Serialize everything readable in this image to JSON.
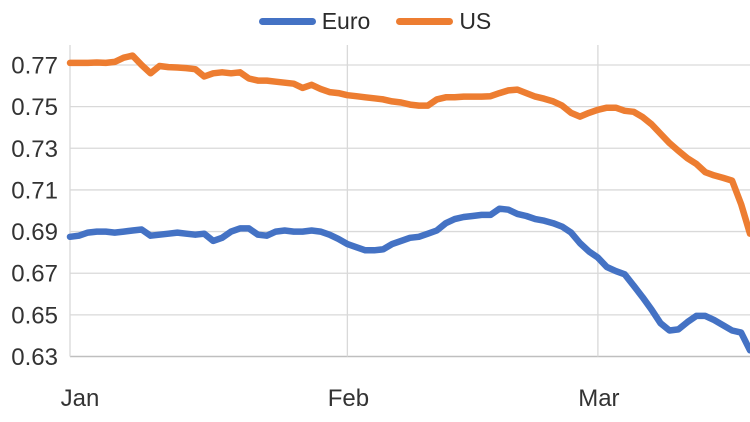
{
  "chart_data": {
    "type": "line",
    "title": "",
    "legend_position": "top-center",
    "grid": true,
    "x_axis": {
      "tick_labels": [
        "Jan",
        "Feb",
        "Mar"
      ],
      "tick_day_indices": [
        0,
        31,
        59
      ],
      "total_days": 77
    },
    "y_axis": {
      "min": 0.63,
      "max": 0.77,
      "step": 0.02,
      "tick_labels": [
        "0.77",
        "0.75",
        "0.73",
        "0.71",
        "0.69",
        "0.67",
        "0.65",
        "0.63"
      ]
    },
    "colors": {
      "euro_line": "#4472C4",
      "us_line": "#ED7D31",
      "gridline": "#D9D9D9",
      "axis_line": "#BFBFBF",
      "tick_text": "#333333"
    },
    "series": [
      {
        "name": "Euro",
        "color": "#4472C4",
        "values": [
          0.6875,
          0.688,
          0.6895,
          0.69,
          0.69,
          0.6895,
          0.69,
          0.6905,
          0.691,
          0.688,
          0.6885,
          0.689,
          0.6895,
          0.689,
          0.6885,
          0.689,
          0.6855,
          0.687,
          0.69,
          0.6915,
          0.6915,
          0.6885,
          0.688,
          0.69,
          0.6905,
          0.69,
          0.69,
          0.6905,
          0.69,
          0.6885,
          0.6865,
          0.684,
          0.6825,
          0.681,
          0.681,
          0.6815,
          0.684,
          0.6855,
          0.687,
          0.6875,
          0.689,
          0.6905,
          0.694,
          0.696,
          0.697,
          0.6975,
          0.698,
          0.698,
          0.701,
          0.7005,
          0.6985,
          0.6975,
          0.696,
          0.6952,
          0.694,
          0.6924,
          0.6895,
          0.6844,
          0.6805,
          0.6775,
          0.673,
          0.671,
          0.6695,
          0.664,
          0.6585,
          0.6525,
          0.646,
          0.6425,
          0.643,
          0.6465,
          0.6495,
          0.6495,
          0.6475,
          0.645,
          0.6425,
          0.6415,
          0.633
        ]
      },
      {
        "name": "US",
        "color": "#ED7D31",
        "values": [
          0.771,
          0.771,
          0.771,
          0.7712,
          0.771,
          0.7715,
          0.7735,
          0.7745,
          0.77,
          0.766,
          0.7695,
          0.769,
          0.7688,
          0.7685,
          0.768,
          0.7645,
          0.766,
          0.7665,
          0.766,
          0.7665,
          0.7635,
          0.7625,
          0.7625,
          0.762,
          0.7615,
          0.761,
          0.759,
          0.7605,
          0.7585,
          0.757,
          0.7565,
          0.7555,
          0.755,
          0.7545,
          0.754,
          0.7535,
          0.7525,
          0.752,
          0.751,
          0.7505,
          0.7505,
          0.7535,
          0.7545,
          0.7545,
          0.7548,
          0.7548,
          0.7548,
          0.755,
          0.7565,
          0.7578,
          0.7582,
          0.7565,
          0.7548,
          0.7538,
          0.7525,
          0.7505,
          0.747,
          0.7452,
          0.747,
          0.7485,
          0.7495,
          0.7495,
          0.748,
          0.7475,
          0.745,
          0.7415,
          0.737,
          0.7325,
          0.7288,
          0.7252,
          0.7225,
          0.7185,
          0.717,
          0.7158,
          0.7145,
          0.7032,
          0.689
        ]
      }
    ]
  }
}
